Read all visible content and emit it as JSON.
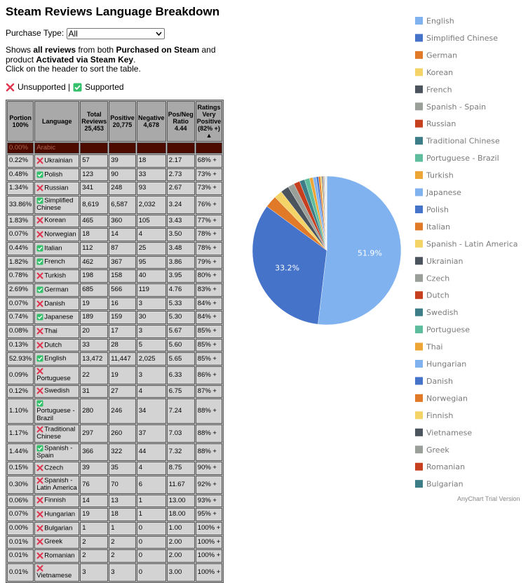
{
  "header": {
    "title": "Steam Reviews Language Breakdown"
  },
  "filter": {
    "label": "Purchase Type:",
    "selected": "All"
  },
  "description": {
    "parts": [
      {
        "text": "Shows "
      },
      {
        "text": "all reviews",
        "bold": true
      },
      {
        "text": " from both "
      },
      {
        "text": "Purchased on Steam",
        "bold": true
      },
      {
        "text": " and product "
      },
      {
        "text": "Activated via Steam Key",
        "bold": true
      },
      {
        "text": "."
      }
    ],
    "hint": "Click on the header to sort the table."
  },
  "key": {
    "unsupported": "Unsupported |",
    "supported": "Supported"
  },
  "table": {
    "columns": [
      "Portion 100%",
      "Language",
      "Total Reviews 25,453",
      "Positive 20,775",
      "Negative 4,678",
      "Pos/Neg Ratio 4.44",
      "Ratings Very Positive (82% +) ▲"
    ],
    "rows": [
      {
        "portion": "0.00%",
        "language": "Arabic",
        "highlight": true
      },
      {
        "portion": "0.22%",
        "supported": false,
        "language": "Ukrainian",
        "total": "57",
        "positive": "39",
        "negative": "18",
        "ratio": "2.17",
        "rating": "68% +"
      },
      {
        "portion": "0.48%",
        "supported": true,
        "language": "Polish",
        "total": "123",
        "positive": "90",
        "negative": "33",
        "ratio": "2.73",
        "rating": "73% +"
      },
      {
        "portion": "1.34%",
        "supported": false,
        "language": "Russian",
        "total": "341",
        "positive": "248",
        "negative": "93",
        "ratio": "2.67",
        "rating": "73% +"
      },
      {
        "portion": "33.86%",
        "supported": true,
        "language": "Simplified Chinese",
        "total": "8,619",
        "positive": "6,587",
        "negative": "2,032",
        "ratio": "3.24",
        "rating": "76% +"
      },
      {
        "portion": "1.83%",
        "supported": false,
        "language": "Korean",
        "total": "465",
        "positive": "360",
        "negative": "105",
        "ratio": "3.43",
        "rating": "77% +"
      },
      {
        "portion": "0.07%",
        "supported": false,
        "language": "Norwegian",
        "total": "18",
        "positive": "14",
        "negative": "4",
        "ratio": "3.50",
        "rating": "78% +"
      },
      {
        "portion": "0.44%",
        "supported": true,
        "language": "Italian",
        "total": "112",
        "positive": "87",
        "negative": "25",
        "ratio": "3.48",
        "rating": "78% +"
      },
      {
        "portion": "1.82%",
        "supported": true,
        "language": "French",
        "total": "462",
        "positive": "367",
        "negative": "95",
        "ratio": "3.86",
        "rating": "79% +"
      },
      {
        "portion": "0.78%",
        "supported": false,
        "language": "Turkish",
        "total": "198",
        "positive": "158",
        "negative": "40",
        "ratio": "3.95",
        "rating": "80% +"
      },
      {
        "portion": "2.69%",
        "supported": true,
        "language": "German",
        "total": "685",
        "positive": "566",
        "negative": "119",
        "ratio": "4.76",
        "rating": "83% +"
      },
      {
        "portion": "0.07%",
        "supported": false,
        "language": "Danish",
        "total": "19",
        "positive": "16",
        "negative": "3",
        "ratio": "5.33",
        "rating": "84% +"
      },
      {
        "portion": "0.74%",
        "supported": true,
        "language": "Japanese",
        "total": "189",
        "positive": "159",
        "negative": "30",
        "ratio": "5.30",
        "rating": "84% +"
      },
      {
        "portion": "0.08%",
        "supported": false,
        "language": "Thai",
        "total": "20",
        "positive": "17",
        "negative": "3",
        "ratio": "5.67",
        "rating": "85% +"
      },
      {
        "portion": "0.13%",
        "supported": false,
        "language": "Dutch",
        "total": "33",
        "positive": "28",
        "negative": "5",
        "ratio": "5.60",
        "rating": "85% +"
      },
      {
        "portion": "52.93%",
        "supported": true,
        "language": "English",
        "total": "13,472",
        "positive": "11,447",
        "negative": "2,025",
        "ratio": "5.65",
        "rating": "85% +"
      },
      {
        "portion": "0.09%",
        "supported": false,
        "language": "Portuguese",
        "total": "22",
        "positive": "19",
        "negative": "3",
        "ratio": "6.33",
        "rating": "86% +"
      },
      {
        "portion": "0.12%",
        "supported": false,
        "language": "Swedish",
        "total": "31",
        "positive": "27",
        "negative": "4",
        "ratio": "6.75",
        "rating": "87% +"
      },
      {
        "portion": "1.10%",
        "supported": true,
        "language": "Portuguese - Brazil",
        "total": "280",
        "positive": "246",
        "negative": "34",
        "ratio": "7.24",
        "rating": "88% +"
      },
      {
        "portion": "1.17%",
        "supported": false,
        "language": "Traditional Chinese",
        "total": "297",
        "positive": "260",
        "negative": "37",
        "ratio": "7.03",
        "rating": "88% +"
      },
      {
        "portion": "1.44%",
        "supported": true,
        "language": "Spanish - Spain",
        "total": "366",
        "positive": "322",
        "negative": "44",
        "ratio": "7.32",
        "rating": "88% +"
      },
      {
        "portion": "0.15%",
        "supported": false,
        "language": "Czech",
        "total": "39",
        "positive": "35",
        "negative": "4",
        "ratio": "8.75",
        "rating": "90% +"
      },
      {
        "portion": "0.30%",
        "supported": false,
        "language": "Spanish - Latin America",
        "total": "76",
        "positive": "70",
        "negative": "6",
        "ratio": "11.67",
        "rating": "92% +"
      },
      {
        "portion": "0.06%",
        "supported": false,
        "language": "Finnish",
        "total": "14",
        "positive": "13",
        "negative": "1",
        "ratio": "13.00",
        "rating": "93% +"
      },
      {
        "portion": "0.07%",
        "supported": false,
        "language": "Hungarian",
        "total": "19",
        "positive": "18",
        "negative": "1",
        "ratio": "18.00",
        "rating": "95% +"
      },
      {
        "portion": "0.00%",
        "supported": false,
        "language": "Bulgarian",
        "total": "1",
        "positive": "1",
        "negative": "0",
        "ratio": "1.00",
        "rating": "100% +"
      },
      {
        "portion": "0.01%",
        "supported": false,
        "language": "Greek",
        "total": "2",
        "positive": "2",
        "negative": "0",
        "ratio": "2.00",
        "rating": "100% +"
      },
      {
        "portion": "0.01%",
        "supported": false,
        "language": "Romanian",
        "total": "2",
        "positive": "2",
        "negative": "0",
        "ratio": "2.00",
        "rating": "100% +"
      },
      {
        "portion": "0.01%",
        "supported": false,
        "language": "Vietnamese",
        "total": "3",
        "positive": "3",
        "negative": "0",
        "ratio": "3.00",
        "rating": "100% +"
      }
    ]
  },
  "chart_data": {
    "type": "pie",
    "categories": [
      "English",
      "Simplified Chinese",
      "German",
      "Korean",
      "French",
      "Spanish - Spain",
      "Russian",
      "Traditional Chinese",
      "Portuguese - Brazil",
      "Turkish",
      "Japanese",
      "Polish",
      "Italian",
      "Spanish - Latin America",
      "Ukrainian",
      "Czech",
      "Dutch",
      "Swedish",
      "Portuguese",
      "Thai",
      "Hungarian",
      "Danish",
      "Norwegian",
      "Finnish",
      "Vietnamese",
      "Greek",
      "Romanian",
      "Bulgarian"
    ],
    "values": [
      51.88,
      33.19,
      2.64,
      1.79,
      1.78,
      1.41,
      1.31,
      1.14,
      1.08,
      0.76,
      0.73,
      0.47,
      0.43,
      0.29,
      0.22,
      0.15,
      0.13,
      0.12,
      0.08,
      0.08,
      0.07,
      0.07,
      0.07,
      0.05,
      0.01,
      0.01,
      0.01,
      0.004
    ],
    "value_labels": [
      "51.9%",
      "33.2%",
      null,
      null,
      null,
      null,
      null,
      null,
      null,
      null,
      null,
      null,
      null,
      null,
      null,
      null,
      null,
      null,
      null,
      null,
      null,
      null,
      null,
      null,
      null,
      null,
      null,
      null
    ],
    "colors": [
      "#7fb2ef",
      "#4473c9",
      "#e07a29",
      "#f5d467",
      "#4b535c",
      "#9a9f9a",
      "#c6401f",
      "#3d7d88",
      "#5dbd9c",
      "#eda636"
    ],
    "legend": "right"
  },
  "watermark": "AnyChart Trial Version"
}
